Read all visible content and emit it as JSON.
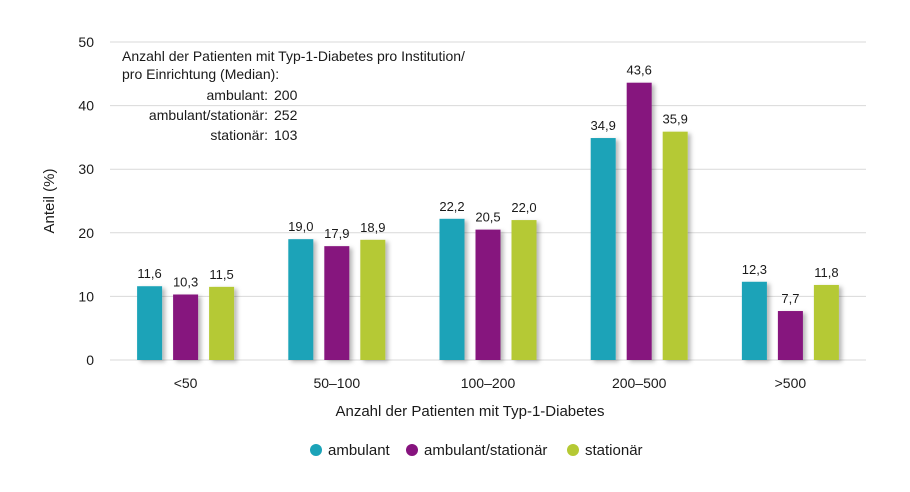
{
  "chart_data": {
    "type": "bar",
    "categories": [
      "<50",
      "50–100",
      "100–200",
      "200–500",
      ">500"
    ],
    "series": [
      {
        "name": "ambulant",
        "values": [
          11.6,
          19.0,
          22.2,
          34.9,
          12.3
        ],
        "labels": [
          "11,6",
          "19,0",
          "22,2",
          "34,9",
          "12,3"
        ],
        "color": "#1ba3b8"
      },
      {
        "name": "ambulant/stationär",
        "values": [
          10.3,
          17.9,
          20.5,
          43.6,
          7.7
        ],
        "labels": [
          "10,3",
          "17,9",
          "20,5",
          "43,6",
          "7,7"
        ],
        "color": "#86137e"
      },
      {
        "name": "stationär",
        "values": [
          11.5,
          18.9,
          22.0,
          35.9,
          11.8
        ],
        "labels": [
          "11,5",
          "18,9",
          "22,0",
          "35,9",
          "11,8"
        ],
        "color": "#b5c934"
      }
    ],
    "xlabel": "Anzahl der Patienten mit Typ-1-Diabetes",
    "ylabel": "Anteil (%)",
    "ylim": [
      0,
      50
    ],
    "yticks": [
      0,
      10,
      20,
      30,
      40,
      50
    ],
    "grid": true,
    "legend_position": "bottom",
    "annotation": {
      "title_lines": [
        "Anzahl der Patienten mit Typ-1-Diabetes pro Institution/",
        "pro Einrichtung (Median):"
      ],
      "rows": [
        {
          "label": "ambulant:",
          "value": "200"
        },
        {
          "label": "ambulant/stationär:",
          "value": "252"
        },
        {
          "label": "stationär:",
          "value": "103"
        }
      ]
    }
  }
}
